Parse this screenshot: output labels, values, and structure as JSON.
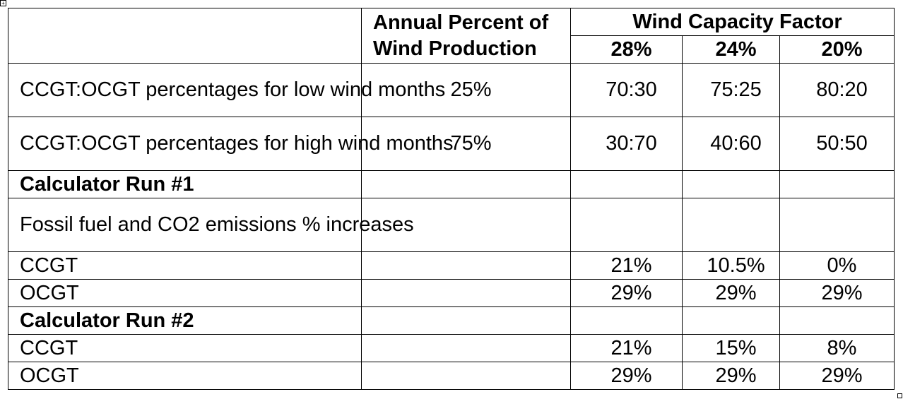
{
  "header": {
    "annual_line1": "Annual Percent of",
    "annual_line2": "Wind Production",
    "wind_capacity": "Wind Capacity Factor",
    "cf": [
      "28%",
      "24%",
      "20%"
    ]
  },
  "rows": [
    {
      "label": "CCGT:OCGT percentages for low wind months",
      "annual": "25%",
      "v": [
        "70:30",
        "75:25",
        "80:20"
      ]
    },
    {
      "label": "CCGT:OCGT percentages for high wind months",
      "annual": "75%",
      "v": [
        "30:70",
        "40:60",
        "50:50"
      ]
    },
    {
      "label": "Calculator Run #1",
      "annual": "",
      "v": [
        "",
        "",
        ""
      ]
    },
    {
      "label": "Fossil fuel and CO2 emissions % increases",
      "annual": "",
      "v": [
        "",
        "",
        ""
      ]
    },
    {
      "label": "CCGT",
      "annual": "",
      "v": [
        "21%",
        "10.5%",
        "0%"
      ]
    },
    {
      "label": "OCGT",
      "annual": "",
      "v": [
        "29%",
        "29%",
        "29%"
      ]
    },
    {
      "label": "Calculator Run #2",
      "annual": "",
      "v": [
        "",
        "",
        ""
      ]
    },
    {
      "label": "CCGT",
      "annual": "",
      "v": [
        "21%",
        "15%",
        "8%"
      ]
    },
    {
      "label": "OCGT",
      "annual": "",
      "v": [
        "29%",
        "29%",
        "29%"
      ]
    }
  ]
}
